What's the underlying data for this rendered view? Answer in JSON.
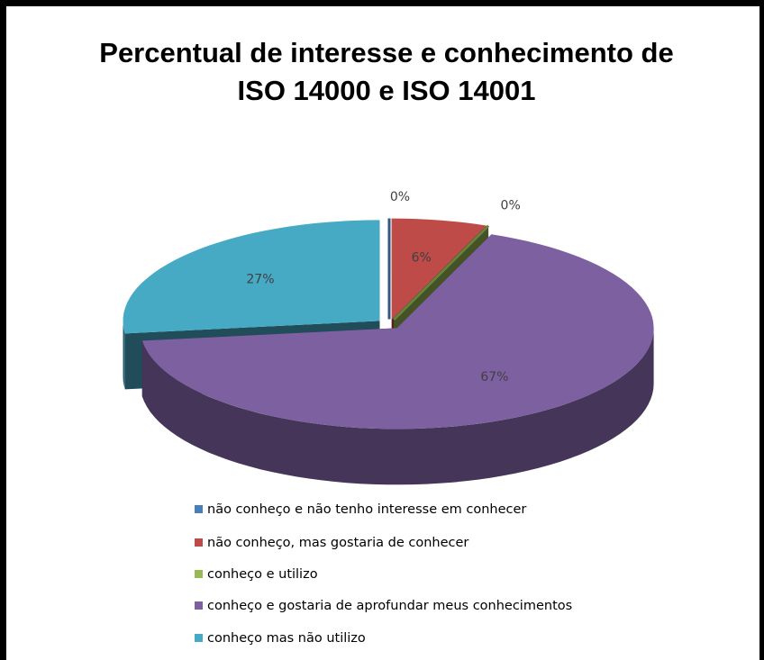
{
  "chart_data": {
    "type": "pie3d",
    "title": "Percentual de interesse e conhecimento de ISO 14000 e ISO 14001",
    "categories": [
      "não conheço e não tenho interesse em conhecer",
      "não conheço, mas gostaria de conhecer",
      "conheço e utilizo",
      "conheço e gostaria de aprofundar meus conhecimentos",
      "conheço mas não utilizo"
    ],
    "values": [
      0,
      6,
      0,
      67,
      27
    ],
    "value_labels": [
      "0%",
      "6%",
      "0%",
      "67%",
      "27%"
    ],
    "colors": [
      "#4a7ebb",
      "#be4b48",
      "#98b954",
      "#7d60a0",
      "#46aac5"
    ],
    "legend": "bottom"
  }
}
